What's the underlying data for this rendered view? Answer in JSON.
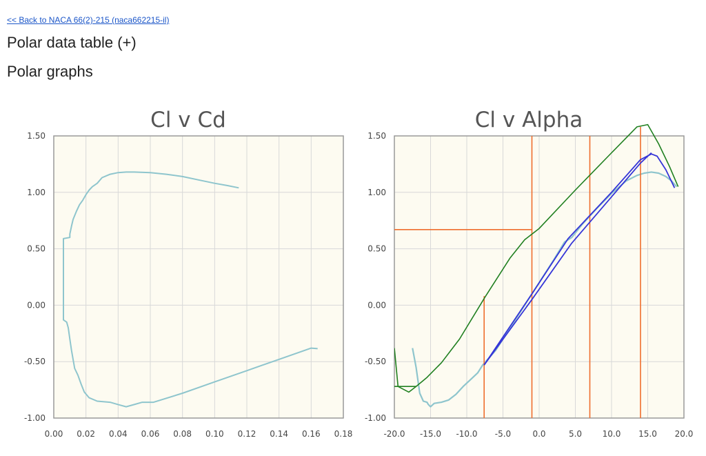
{
  "nav": {
    "back_link": "<< Back to NACA 66(2)-215 (naca662215-il)"
  },
  "headings": {
    "table": "Polar data table (+)",
    "graphs": "Polar graphs"
  },
  "colors": {
    "plot_bg": "#fdfbf1",
    "grid": "#d8d8d8",
    "polar": "#8ec5cd",
    "orange": "#ef6d2c",
    "green": "#1f7f1f",
    "blue": "#3535d8"
  },
  "chart_data": [
    {
      "type": "line",
      "title": "Cl v Cd",
      "xlabel": "",
      "ylabel": "",
      "xlim": [
        0,
        0.18
      ],
      "ylim": [
        -1.0,
        1.5
      ],
      "xticks": [
        "0.00",
        "0.02",
        "0.04",
        "0.06",
        "0.08",
        "0.10",
        "0.12",
        "0.14",
        "0.16",
        "0.18"
      ],
      "yticks": [
        "-1.00",
        "-0.50",
        "0.00",
        "0.50",
        "1.00",
        "1.50"
      ],
      "grid": true,
      "series": [
        {
          "color": "#8ec5cd",
          "points": [
            [
              0.115,
              1.04
            ],
            [
              0.108,
              1.06
            ],
            [
              0.1,
              1.08
            ],
            [
              0.09,
              1.11
            ],
            [
              0.08,
              1.14
            ],
            [
              0.07,
              1.16
            ],
            [
              0.06,
              1.175
            ],
            [
              0.05,
              1.18
            ],
            [
              0.045,
              1.18
            ],
            [
              0.04,
              1.175
            ],
            [
              0.035,
              1.16
            ],
            [
              0.03,
              1.13
            ],
            [
              0.027,
              1.08
            ],
            [
              0.024,
              1.05
            ],
            [
              0.022,
              1.02
            ],
            [
              0.02,
              0.98
            ],
            [
              0.018,
              0.93
            ],
            [
              0.016,
              0.89
            ],
            [
              0.014,
              0.83
            ],
            [
              0.012,
              0.76
            ],
            [
              0.011,
              0.7
            ],
            [
              0.01,
              0.63
            ],
            [
              0.01,
              0.6
            ],
            [
              0.006,
              0.59
            ],
            [
              0.006,
              0.58
            ],
            [
              0.006,
              0.4
            ],
            [
              0.006,
              0.2
            ],
            [
              0.006,
              0.0
            ],
            [
              0.006,
              -0.13
            ],
            [
              0.008,
              -0.15
            ],
            [
              0.009,
              -0.2
            ],
            [
              0.01,
              -0.3
            ],
            [
              0.011,
              -0.4
            ],
            [
              0.012,
              -0.48
            ],
            [
              0.013,
              -0.56
            ],
            [
              0.015,
              -0.62
            ],
            [
              0.017,
              -0.7
            ],
            [
              0.019,
              -0.77
            ],
            [
              0.022,
              -0.82
            ],
            [
              0.027,
              -0.85
            ],
            [
              0.035,
              -0.86
            ],
            [
              0.04,
              -0.88
            ],
            [
              0.045,
              -0.9
            ],
            [
              0.05,
              -0.88
            ],
            [
              0.055,
              -0.86
            ],
            [
              0.062,
              -0.86
            ],
            [
              0.08,
              -0.78
            ],
            [
              0.1,
              -0.68
            ],
            [
              0.12,
              -0.58
            ],
            [
              0.14,
              -0.48
            ],
            [
              0.16,
              -0.38
            ],
            [
              0.164,
              -0.385
            ]
          ]
        }
      ]
    },
    {
      "type": "line",
      "title": "Cl v Alpha",
      "xlabel": "",
      "ylabel": "",
      "xlim": [
        -20,
        20
      ],
      "ylim": [
        -1.0,
        1.5
      ],
      "xticks": [
        "-20.0",
        "-15.0",
        "-10.0",
        "-5.0",
        "0.0",
        "5.0",
        "10.0",
        "15.0",
        "20.0"
      ],
      "yticks": [
        "-1.00",
        "-0.50",
        "0.00",
        "0.50",
        "1.00",
        "1.50"
      ],
      "grid": true,
      "series": [
        {
          "color": "#8ec5cd",
          "width": 2.2,
          "points": [
            [
              -17.5,
              -0.38
            ],
            [
              -17.0,
              -0.55
            ],
            [
              -16.5,
              -0.78
            ],
            [
              -16.0,
              -0.85
            ],
            [
              -15.5,
              -0.86
            ],
            [
              -15.3,
              -0.88
            ],
            [
              -15.0,
              -0.9
            ],
            [
              -14.5,
              -0.87
            ],
            [
              -13.5,
              -0.86
            ],
            [
              -12.5,
              -0.84
            ],
            [
              -11.5,
              -0.79
            ],
            [
              -10.5,
              -0.72
            ],
            [
              -9.5,
              -0.66
            ],
            [
              -8.5,
              -0.6
            ],
            [
              -7.8,
              -0.53
            ],
            [
              -6.0,
              -0.4
            ],
            [
              -4.0,
              -0.2
            ],
            [
              -2.0,
              0.0
            ],
            [
              0.0,
              0.2
            ],
            [
              2.0,
              0.4
            ],
            [
              3.5,
              0.56
            ],
            [
              4.5,
              0.6
            ],
            [
              6.0,
              0.72
            ],
            [
              8.0,
              0.86
            ],
            [
              10.0,
              0.99
            ],
            [
              12.0,
              1.1
            ],
            [
              13.5,
              1.15
            ],
            [
              14.5,
              1.17
            ],
            [
              15.5,
              1.18
            ],
            [
              16.5,
              1.17
            ],
            [
              17.5,
              1.14
            ],
            [
              18.3,
              1.1
            ],
            [
              19.0,
              1.05
            ]
          ]
        },
        {
          "color": "#ef6d2c",
          "width": 1.6,
          "points": [
            [
              -20.0,
              0.67
            ],
            [
              -1.0,
              0.67
            ]
          ]
        },
        {
          "color": "#ef6d2c",
          "width": 1.6,
          "points": [
            [
              -1.0,
              1.5
            ],
            [
              -1.0,
              -1.0
            ]
          ]
        },
        {
          "color": "#ef6d2c",
          "width": 1.6,
          "points": [
            [
              7.0,
              1.5
            ],
            [
              7.0,
              -1.0
            ]
          ]
        },
        {
          "color": "#ef6d2c",
          "width": 1.6,
          "points": [
            [
              14.0,
              1.58
            ],
            [
              14.0,
              -1.0
            ]
          ]
        },
        {
          "color": "#ef6d2c",
          "width": 1.6,
          "points": [
            [
              -7.6,
              0.08
            ],
            [
              -7.6,
              -1.0
            ]
          ]
        },
        {
          "color": "#1f7f1f",
          "width": 1.6,
          "points": [
            [
              -20.0,
              -0.38
            ],
            [
              -19.5,
              -0.72
            ],
            [
              -18.0,
              -0.77
            ],
            [
              -17.0,
              -0.72
            ],
            [
              -15.5,
              -0.64
            ],
            [
              -13.5,
              -0.51
            ],
            [
              -11.0,
              -0.3
            ],
            [
              -7.5,
              0.07
            ],
            [
              -4.0,
              0.42
            ],
            [
              -2.0,
              0.58
            ],
            [
              0.0,
              0.68
            ],
            [
              5.0,
              1.02
            ],
            [
              10.0,
              1.35
            ],
            [
              13.5,
              1.58
            ],
            [
              15.0,
              1.6
            ],
            [
              16.5,
              1.43
            ],
            [
              18.0,
              1.23
            ],
            [
              19.2,
              1.05
            ]
          ]
        },
        {
          "color": "#1f7f1f",
          "width": 1.6,
          "points": [
            [
              -20.0,
              -0.72
            ],
            [
              -17.0,
              -0.72
            ]
          ]
        },
        {
          "color": "#3535d8",
          "width": 1.8,
          "points": [
            [
              -7.6,
              -0.53
            ],
            [
              -1.0,
              0.1
            ],
            [
              4.0,
              0.59
            ],
            [
              10.0,
              1.0
            ],
            [
              14.0,
              1.29
            ],
            [
              15.5,
              1.34
            ],
            [
              16.3,
              1.32
            ],
            [
              17.5,
              1.2
            ],
            [
              18.7,
              1.04
            ]
          ]
        },
        {
          "color": "#3535d8",
          "width": 1.8,
          "points": [
            [
              -7.6,
              -0.53
            ],
            [
              -1.0,
              0.05
            ],
            [
              4.5,
              0.55
            ],
            [
              10.0,
              0.96
            ],
            [
              14.0,
              1.26
            ],
            [
              15.5,
              1.35
            ]
          ]
        }
      ]
    }
  ]
}
